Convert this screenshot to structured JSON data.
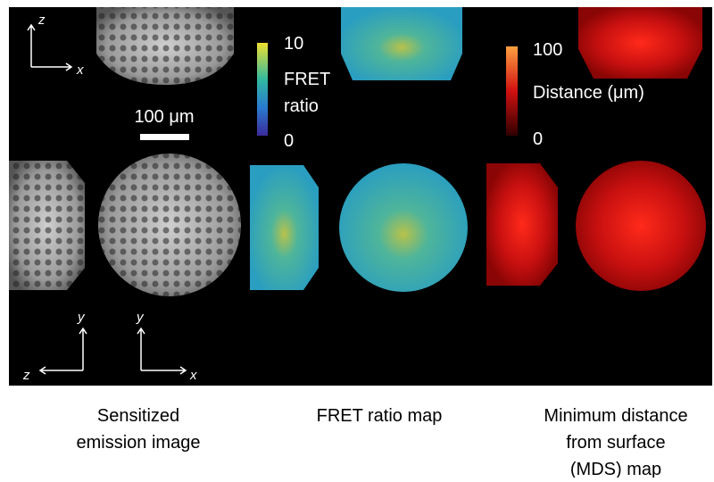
{
  "panels": {
    "sensitized": {
      "axes_top": [
        "z",
        "x"
      ],
      "axes_bottom_left": [
        "y",
        "z"
      ],
      "axes_bottom_right": [
        "y",
        "x"
      ],
      "scale_bar": "100 μm"
    },
    "fret": {
      "colorbar": {
        "max": "10",
        "label": [
          "FRET",
          "ratio"
        ],
        "min": "0"
      }
    },
    "mds": {
      "colorbar": {
        "max": "100",
        "label": "Distance (μm)",
        "min": "0"
      }
    }
  },
  "captions": {
    "sensitized": [
      "Sensitized",
      "emission image"
    ],
    "fret": [
      "FRET ratio map"
    ],
    "mds": [
      "Minimum distance",
      "from surface",
      "(MDS) map"
    ]
  }
}
